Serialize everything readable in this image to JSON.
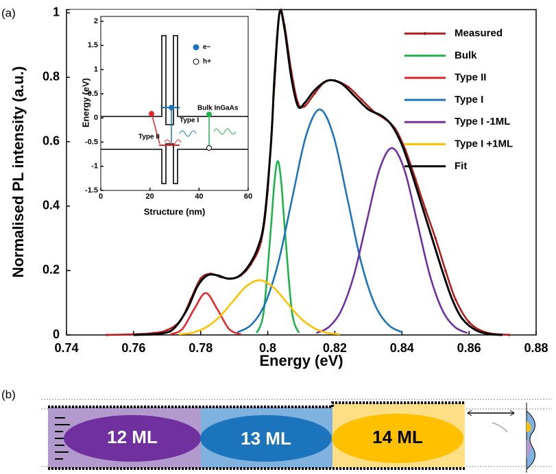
{
  "panel_labels": [
    "(a)",
    "(b)"
  ],
  "diagram": {
    "layers": [
      "12 ML",
      "13 ML",
      "14 ML"
    ]
  },
  "chart_data": [
    {
      "type": "line",
      "x_label": "Energy (eV)",
      "y_label": "Normalised PL intensity (a.u.)",
      "xlim": [
        0.74,
        0.88
      ],
      "xticks": [
        0.74,
        0.76,
        0.78,
        0.8,
        0.82,
        0.84,
        0.86,
        0.88
      ],
      "ylim": [
        0,
        1.01
      ],
      "yticks": [
        0,
        0.2,
        0.4,
        0.6,
        0.8,
        1
      ],
      "legend": "upper right",
      "series": [
        {
          "name": "Measured",
          "color": "#b01c1c",
          "marker": true,
          "x": [
            0.752,
            0.76,
            0.766,
            0.77,
            0.774,
            0.777,
            0.78,
            0.783,
            0.786,
            0.789,
            0.792,
            0.795,
            0.798,
            0.8,
            0.802,
            0.8035,
            0.805,
            0.807,
            0.809,
            0.811,
            0.814,
            0.817,
            0.82,
            0.824,
            0.828,
            0.832,
            0.835,
            0.838,
            0.841,
            0.844,
            0.847,
            0.85,
            0.853,
            0.856,
            0.86,
            0.865,
            0.872
          ],
          "values": [
            0,
            0.002,
            0.006,
            0.015,
            0.045,
            0.11,
            0.175,
            0.19,
            0.18,
            0.175,
            0.185,
            0.22,
            0.29,
            0.45,
            0.78,
            1.0,
            0.96,
            0.82,
            0.72,
            0.71,
            0.75,
            0.785,
            0.79,
            0.77,
            0.73,
            0.69,
            0.67,
            0.64,
            0.575,
            0.485,
            0.39,
            0.3,
            0.2,
            0.11,
            0.04,
            0.008,
            0
          ]
        },
        {
          "name": "Bulk",
          "color": "#1db34a",
          "x": [
            0.7967,
            0.7988,
            0.8009,
            0.802,
            0.803,
            0.804,
            0.8051,
            0.8072,
            0.8093
          ],
          "values": [
            0.006,
            0.073,
            0.327,
            0.476,
            0.54,
            0.476,
            0.327,
            0.073,
            0.006
          ]
        },
        {
          "name": "Type II",
          "color": "#e8262a",
          "x": [
            0.771,
            0.7745,
            0.778,
            0.7815,
            0.785,
            0.7885,
            0.792
          ],
          "values": [
            0.002,
            0.018,
            0.079,
            0.13,
            0.079,
            0.018,
            0.002
          ]
        },
        {
          "name": "Type I",
          "color": "#1c75bc",
          "x": [
            0.7909,
            0.795,
            0.7991,
            0.8032,
            0.8073,
            0.8114,
            0.8155,
            0.8196,
            0.8237,
            0.8278,
            0.8319,
            0.836,
            0.8401
          ],
          "values": [
            0.008,
            0.031,
            0.095,
            0.227,
            0.425,
            0.618,
            0.7,
            0.618,
            0.425,
            0.227,
            0.095,
            0.031,
            0.008
          ]
        },
        {
          "name": "Type I -1ML",
          "color": "#7030a0",
          "x": [
            0.8145,
            0.81825,
            0.822,
            0.82575,
            0.8295,
            0.83325,
            0.837,
            0.84075,
            0.8445,
            0.84825,
            0.852,
            0.85575,
            0.8595
          ],
          "values": [
            0.006,
            0.025,
            0.078,
            0.188,
            0.352,
            0.512,
            0.58,
            0.512,
            0.352,
            0.188,
            0.078,
            0.025,
            0.006
          ]
        },
        {
          "name": "Type I +1ML",
          "color": "#ffc000",
          "x": [
            0.7735,
            0.7775,
            0.7815,
            0.7855,
            0.7895,
            0.7935,
            0.7975,
            0.8015,
            0.8055,
            0.8095,
            0.8135,
            0.8175,
            0.8215
          ],
          "values": [
            0.002,
            0.007,
            0.023,
            0.055,
            0.103,
            0.15,
            0.17,
            0.15,
            0.103,
            0.055,
            0.023,
            0.007,
            0.002
          ]
        },
        {
          "name": "Fit",
          "color": "#000000",
          "x": [
            0.76,
            0.768,
            0.772,
            0.776,
            0.779,
            0.782,
            0.785,
            0.788,
            0.791,
            0.794,
            0.797,
            0.799,
            0.801,
            0.802,
            0.8035,
            0.805,
            0.807,
            0.809,
            0.811,
            0.814,
            0.818,
            0.822,
            0.826,
            0.83,
            0.834,
            0.837,
            0.84,
            0.843,
            0.846,
            0.849,
            0.852,
            0.855,
            0.858,
            0.862,
            0.866,
            0.87
          ],
          "values": [
            0,
            0.004,
            0.02,
            0.08,
            0.15,
            0.185,
            0.185,
            0.175,
            0.18,
            0.21,
            0.27,
            0.36,
            0.6,
            0.8,
            1.0,
            0.95,
            0.8,
            0.71,
            0.72,
            0.76,
            0.79,
            0.78,
            0.74,
            0.7,
            0.68,
            0.65,
            0.59,
            0.5,
            0.4,
            0.3,
            0.2,
            0.11,
            0.05,
            0.015,
            0.003,
            0
          ]
        }
      ]
    },
    {
      "type": "band-diagram",
      "x_label": "Structure (nm)",
      "y_label": "Energy (eV)",
      "xlim": [
        0,
        60
      ],
      "xticks": [
        0,
        20,
        40,
        60
      ],
      "ylim": [
        -1.5,
        2.1
      ],
      "yticks": [
        -1.5,
        -1,
        -0.5,
        0,
        0.5,
        1,
        1.5,
        2
      ],
      "annotations": [
        "e−",
        "h+",
        "Type I",
        "Type II",
        "Bulk InGaAs"
      ]
    }
  ]
}
